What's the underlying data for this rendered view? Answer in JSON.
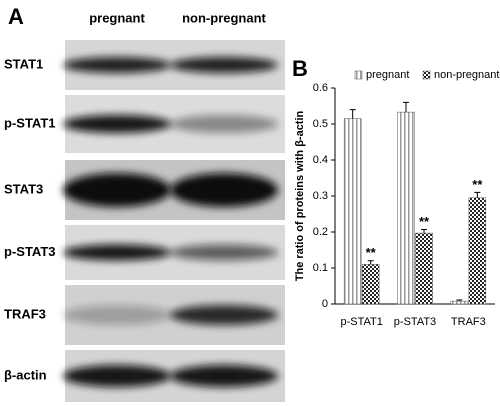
{
  "panel_a": {
    "label": "A",
    "columns": [
      "pregnant",
      "non-pregnant"
    ],
    "rows": [
      "STAT1",
      "p-STAT1",
      "STAT3",
      "p-STAT3",
      "TRAF3",
      "β-actin"
    ]
  },
  "chart_data": {
    "type": "bar",
    "panel_label": "B",
    "ylabel": "The ratio of proteins with β-actin",
    "categories": [
      "p-STAT1",
      "p-STAT3",
      "TRAF3"
    ],
    "series": [
      {
        "name": "pregnant",
        "color": "#999999",
        "pattern": "vertical-stripes",
        "values": [
          0.515,
          0.533,
          0.008
        ],
        "errors": [
          0.025,
          0.027,
          0.003
        ]
      },
      {
        "name": "non-pregnant",
        "color": "#222222",
        "pattern": "checker",
        "values": [
          0.11,
          0.197,
          0.295
        ],
        "errors": [
          0.01,
          0.01,
          0.015
        ],
        "annotations": [
          "**",
          "**",
          "**"
        ]
      }
    ],
    "ylim": [
      0,
      0.6
    ],
    "yticks": [
      0,
      0.1,
      0.2,
      0.3,
      0.4,
      0.5,
      0.6
    ],
    "legend": "top"
  }
}
